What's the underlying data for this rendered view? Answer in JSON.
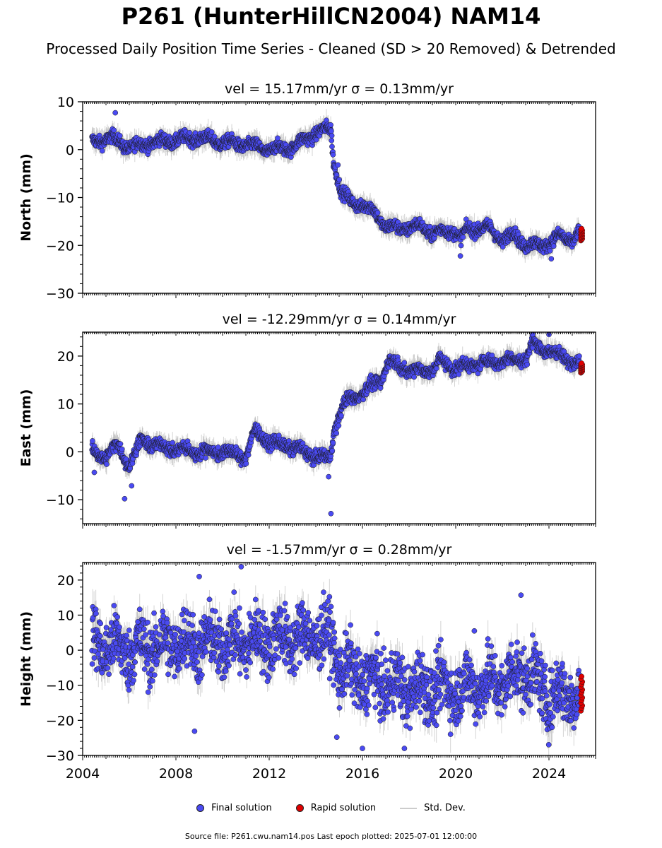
{
  "title": "P261 (HunterHillCN2004) NAM14",
  "subtitle": "Processed Daily Position Time Series - Cleaned (SD > 20 Removed) & Detrended",
  "legend": {
    "final": "Final solution",
    "rapid": "Rapid solution",
    "std": "Std. Dev."
  },
  "footer": "Source file: P261.cwu.nam14.pos  Last epoch plotted: 2025-07-01 12:00:00",
  "colors": {
    "final": "#4a4af2",
    "rapid": "#e00000",
    "std": "#b0b0b0"
  },
  "chart_data": [
    {
      "type": "scatter",
      "title": "vel = 15.17mm/yr   σ = 0.13mm/yr",
      "ylabel": "North (mm)",
      "ylim": [
        -30,
        10
      ],
      "yticks": [
        -30,
        -20,
        -10,
        0,
        10
      ],
      "xlim": [
        2004.0,
        2026.0
      ],
      "trend": [
        [
          2004.4,
          1.5
        ],
        [
          2005.2,
          2.5
        ],
        [
          2006.0,
          0.5
        ],
        [
          2007.0,
          1.5
        ],
        [
          2008.0,
          2.0
        ],
        [
          2009.0,
          2.5
        ],
        [
          2010.0,
          1.5
        ],
        [
          2011.0,
          1.0
        ],
        [
          2012.0,
          0.0
        ],
        [
          2013.0,
          0.5
        ],
        [
          2014.0,
          3.5
        ],
        [
          2014.65,
          4.5
        ],
        [
          2014.75,
          -2.0
        ],
        [
          2015.1,
          -9.0
        ],
        [
          2015.5,
          -11.0
        ],
        [
          2016.0,
          -11.5
        ],
        [
          2016.5,
          -13.0
        ],
        [
          2017.0,
          -16.0
        ],
        [
          2017.5,
          -16.5
        ],
        [
          2018.5,
          -16.0
        ],
        [
          2019.0,
          -17.5
        ],
        [
          2019.5,
          -17.0
        ],
        [
          2020.0,
          -17.0
        ],
        [
          2020.2,
          -19.0
        ],
        [
          2020.5,
          -16.5
        ],
        [
          2021.5,
          -16.5
        ],
        [
          2022.0,
          -19.0
        ],
        [
          2022.5,
          -17.5
        ],
        [
          2023.0,
          -20.0
        ],
        [
          2023.5,
          -20.0
        ],
        [
          2024.0,
          -19.5
        ],
        [
          2024.5,
          -18.0
        ],
        [
          2025.0,
          -19.0
        ],
        [
          2025.3,
          -17.5
        ]
      ],
      "outliers": [
        [
          2005.4,
          7.7
        ],
        [
          2014.95,
          -3.2
        ],
        [
          2020.2,
          -22.2
        ],
        [
          2024.1,
          -22.8
        ]
      ],
      "rapid": {
        "x": 2025.4,
        "range": [
          -19.0,
          -16.5
        ]
      }
    },
    {
      "type": "scatter",
      "title": "vel = -12.29mm/yr   σ = 0.14mm/yr",
      "ylabel": "East (mm)",
      "ylim": [
        -15,
        25
      ],
      "yticks": [
        -10,
        0,
        10,
        20
      ],
      "xlim": [
        2004.0,
        2026.0
      ],
      "trend": [
        [
          2004.4,
          0.0
        ],
        [
          2005.0,
          -1.0
        ],
        [
          2005.5,
          1.5
        ],
        [
          2006.0,
          -3.0
        ],
        [
          2006.5,
          2.5
        ],
        [
          2007.0,
          1.5
        ],
        [
          2008.0,
          0.5
        ],
        [
          2009.0,
          0.0
        ],
        [
          2010.0,
          0.0
        ],
        [
          2011.0,
          -1.0
        ],
        [
          2011.4,
          4.5
        ],
        [
          2012.0,
          2.0
        ],
        [
          2013.0,
          1.0
        ],
        [
          2014.0,
          -1.0
        ],
        [
          2014.6,
          -1.5
        ],
        [
          2014.8,
          5.0
        ],
        [
          2015.2,
          10.0
        ],
        [
          2016.0,
          12.5
        ],
        [
          2016.8,
          15.0
        ],
        [
          2017.1,
          19.0
        ],
        [
          2018.0,
          17.0
        ],
        [
          2019.0,
          17.0
        ],
        [
          2019.3,
          19.0
        ],
        [
          2020.0,
          17.5
        ],
        [
          2021.0,
          18.5
        ],
        [
          2022.0,
          19.0
        ],
        [
          2023.0,
          19.5
        ],
        [
          2023.3,
          22.5
        ],
        [
          2024.0,
          21.0
        ],
        [
          2024.5,
          20.0
        ],
        [
          2025.3,
          18.5
        ]
      ],
      "outliers": [
        [
          2004.5,
          -4.3
        ],
        [
          2005.8,
          -9.8
        ],
        [
          2006.1,
          -7.1
        ],
        [
          2014.55,
          -5.2
        ],
        [
          2014.65,
          -12.9
        ],
        [
          2023.3,
          24.5
        ],
        [
          2024.0,
          24.5
        ]
      ],
      "rapid": {
        "x": 2025.4,
        "range": [
          16.5,
          18.5
        ]
      }
    },
    {
      "type": "scatter",
      "title": "vel = -1.57mm/yr   σ = 0.28mm/yr",
      "ylabel": "Height (mm)",
      "ylim": [
        -30,
        25
      ],
      "yticks": [
        -30,
        -20,
        -10,
        0,
        10,
        20
      ],
      "xlim": [
        2004.0,
        2026.0
      ],
      "xticks": [
        2004,
        2008,
        2012,
        2016,
        2020,
        2024
      ],
      "trend": [
        [
          2004.4,
          2.0
        ],
        [
          2006.0,
          0.0
        ],
        [
          2008.0,
          2.0
        ],
        [
          2010.0,
          2.0
        ],
        [
          2012.0,
          3.0
        ],
        [
          2014.0,
          4.0
        ],
        [
          2014.7,
          3.0
        ],
        [
          2015.0,
          -5.0
        ],
        [
          2016.0,
          -8.0
        ],
        [
          2018.0,
          -11.0
        ],
        [
          2020.0,
          -11.0
        ],
        [
          2022.0,
          -9.0
        ],
        [
          2023.0,
          -6.0
        ],
        [
          2024.0,
          -13.0
        ],
        [
          2025.3,
          -12.0
        ]
      ],
      "noise": 8,
      "outliers": [
        [
          2008.8,
          -23.1
        ],
        [
          2009.0,
          21.0
        ],
        [
          2010.8,
          23.8
        ],
        [
          2014.9,
          -24.8
        ],
        [
          2016.0,
          -28.0
        ],
        [
          2017.8,
          -28.0
        ],
        [
          2022.8,
          15.7
        ],
        [
          2020.8,
          5.5
        ]
      ],
      "rapid": {
        "x": 2025.4,
        "range": [
          -17.3,
          -7.5
        ]
      }
    }
  ]
}
